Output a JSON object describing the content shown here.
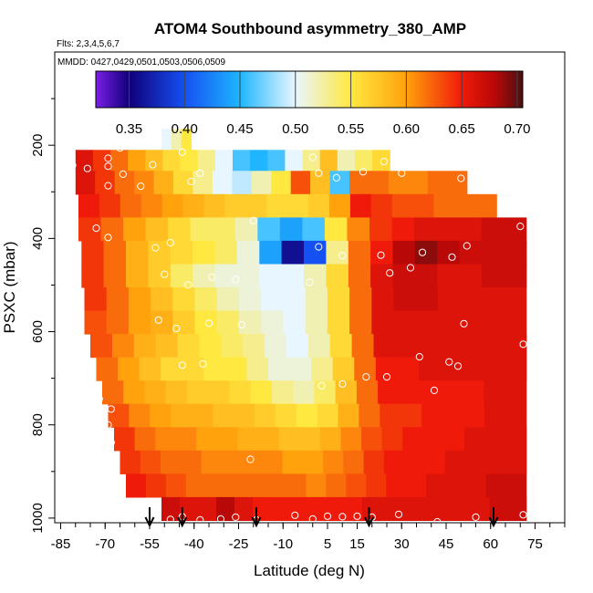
{
  "chart_data": {
    "type": "heatmap",
    "title": "ATOM4 Southbound asymmetry_380_AMP",
    "subtitle": "Flts: 2,3,4,5,6,7",
    "note": "MMDD: 0427,0429,0501,0503,0506,0509",
    "xlabel": "Latitude (deg N)",
    "ylabel": "PSXC (mbar)",
    "xlim": [
      -87,
      85
    ],
    "ylim": [
      1010,
      0
    ],
    "x_tick_labels": [
      "-85",
      "-70",
      "-55",
      "-40",
      "-25",
      "-10",
      "5",
      "15",
      "30",
      "45",
      "60",
      "75"
    ],
    "x_tick_values": [
      -85,
      -70,
      -55,
      -40,
      -25,
      -10,
      5,
      15,
      30,
      45,
      60,
      75
    ],
    "y_tick_labels": [
      "200",
      "400",
      "600",
      "800",
      "1000"
    ],
    "y_tick_values": [
      200,
      400,
      600,
      800,
      1000
    ],
    "colorbar": {
      "min": 0.32,
      "max": 0.705,
      "tick_labels": [
        "0.35",
        "0.40",
        "0.45",
        "0.50",
        "0.55",
        "0.60",
        "0.65",
        "0.70"
      ],
      "tick_values": [
        0.35,
        0.4,
        0.45,
        0.5,
        0.55,
        0.6,
        0.65,
        0.7
      ],
      "stops": [
        {
          "v": 0.32,
          "color": "#7a1fe6"
        },
        {
          "v": 0.35,
          "color": "#10007a"
        },
        {
          "v": 0.4,
          "color": "#1550f2"
        },
        {
          "v": 0.45,
          "color": "#1fb6ff"
        },
        {
          "v": 0.5,
          "color": "#e8f6ff"
        },
        {
          "v": 0.55,
          "color": "#ffe840"
        },
        {
          "v": 0.6,
          "color": "#ffa20c"
        },
        {
          "v": 0.65,
          "color": "#f01a0a"
        },
        {
          "v": 0.68,
          "color": "#b80808"
        },
        {
          "v": 0.705,
          "color": "#4a1010"
        }
      ]
    },
    "pressure_bands": [
      {
        "p_top": 165,
        "p_bot": 210,
        "lat_start": -51,
        "lat_end": -41,
        "values": [
          0.5,
          0.52,
          0.55
        ]
      },
      {
        "p_top": 210,
        "p_bot": 255,
        "lat_start": -80,
        "lat_end": 26,
        "values": [
          0.66,
          0.64,
          0.62,
          0.6,
          0.58,
          0.56,
          0.55,
          0.53,
          0.5,
          0.46,
          0.45,
          0.46,
          0.5,
          0.53,
          0.58,
          0.52,
          0.54,
          0.56
        ]
      },
      {
        "p_top": 255,
        "p_bot": 305,
        "lat_start": -80,
        "lat_end": 52,
        "values": [
          0.66,
          0.64,
          0.62,
          0.61,
          0.59,
          0.56,
          0.53,
          0.5,
          0.49,
          0.52,
          0.55,
          0.63,
          0.58,
          0.46,
          0.62,
          0.62,
          0.61,
          0.61,
          0.62,
          0.62
        ]
      },
      {
        "p_top": 305,
        "p_bot": 355,
        "lat_start": -79,
        "lat_end": 62,
        "values": [
          0.65,
          0.64,
          0.62,
          0.61,
          0.6,
          0.59,
          0.58,
          0.57,
          0.57,
          0.56,
          0.56,
          0.57,
          0.6,
          0.65,
          0.64,
          0.63,
          0.63,
          0.62,
          0.62,
          0.62
        ]
      },
      {
        "p_top": 355,
        "p_bot": 405,
        "lat_start": -79,
        "lat_end": 72,
        "values": [
          0.64,
          0.62,
          0.6,
          0.58,
          0.56,
          0.54,
          0.54,
          0.52,
          0.46,
          0.44,
          0.46,
          0.55,
          0.61,
          0.64,
          0.65,
          0.66,
          0.66,
          0.66,
          0.67,
          0.67
        ]
      },
      {
        "p_top": 405,
        "p_bot": 455,
        "lat_start": -78,
        "lat_end": 72,
        "values": [
          0.64,
          0.62,
          0.59,
          0.57,
          0.56,
          0.55,
          0.54,
          0.51,
          0.44,
          0.36,
          0.4,
          0.53,
          0.62,
          0.65,
          0.68,
          0.69,
          0.68,
          0.67,
          0.67,
          0.67
        ]
      },
      {
        "p_top": 455,
        "p_bot": 505,
        "lat_start": -78,
        "lat_end": 72,
        "values": [
          0.64,
          0.62,
          0.59,
          0.57,
          0.54,
          0.52,
          0.51,
          0.51,
          0.5,
          0.5,
          0.52,
          0.56,
          0.62,
          0.66,
          0.67,
          0.67,
          0.66,
          0.66,
          0.67,
          0.67
        ]
      },
      {
        "p_top": 505,
        "p_bot": 555,
        "lat_start": -77,
        "lat_end": 72,
        "values": [
          0.64,
          0.62,
          0.6,
          0.58,
          0.56,
          0.54,
          0.52,
          0.51,
          0.5,
          0.5,
          0.52,
          0.56,
          0.62,
          0.66,
          0.67,
          0.67,
          0.66,
          0.66,
          0.66,
          0.66
        ]
      },
      {
        "p_top": 555,
        "p_bot": 605,
        "lat_start": -77,
        "lat_end": 72,
        "values": [
          0.63,
          0.62,
          0.6,
          0.59,
          0.57,
          0.55,
          0.54,
          0.52,
          0.51,
          0.5,
          0.52,
          0.56,
          0.62,
          0.66,
          0.66,
          0.66,
          0.66,
          0.66,
          0.66,
          0.66
        ]
      },
      {
        "p_top": 605,
        "p_bot": 655,
        "lat_start": -75,
        "lat_end": 72,
        "values": [
          0.63,
          0.61,
          0.59,
          0.58,
          0.56,
          0.55,
          0.54,
          0.53,
          0.51,
          0.5,
          0.52,
          0.56,
          0.62,
          0.66,
          0.66,
          0.66,
          0.66,
          0.66,
          0.66,
          0.66
        ]
      },
      {
        "p_top": 655,
        "p_bot": 705,
        "lat_start": -73,
        "lat_end": 72,
        "values": [
          0.62,
          0.6,
          0.58,
          0.56,
          0.56,
          0.55,
          0.55,
          0.53,
          0.51,
          0.51,
          0.53,
          0.57,
          0.62,
          0.65,
          0.65,
          0.66,
          0.66,
          0.66,
          0.66,
          0.66
        ]
      },
      {
        "p_top": 705,
        "p_bot": 755,
        "lat_start": -71,
        "lat_end": 72,
        "values": [
          0.62,
          0.6,
          0.59,
          0.58,
          0.57,
          0.57,
          0.56,
          0.55,
          0.53,
          0.52,
          0.54,
          0.58,
          0.62,
          0.65,
          0.65,
          0.65,
          0.65,
          0.65,
          0.66,
          0.66
        ]
      },
      {
        "p_top": 755,
        "p_bot": 805,
        "lat_start": -69,
        "lat_end": 72,
        "values": [
          0.63,
          0.61,
          0.6,
          0.59,
          0.59,
          0.58,
          0.58,
          0.57,
          0.56,
          0.55,
          0.56,
          0.59,
          0.62,
          0.64,
          0.64,
          0.65,
          0.65,
          0.65,
          0.66,
          0.66
        ]
      },
      {
        "p_top": 805,
        "p_bot": 855,
        "lat_start": -67,
        "lat_end": 72,
        "values": [
          0.64,
          0.62,
          0.61,
          0.61,
          0.6,
          0.6,
          0.59,
          0.59,
          0.58,
          0.58,
          0.59,
          0.61,
          0.63,
          0.64,
          0.65,
          0.65,
          0.65,
          0.66,
          0.66,
          0.66
        ]
      },
      {
        "p_top": 855,
        "p_bot": 905,
        "lat_start": -65,
        "lat_end": 72,
        "values": [
          0.64,
          0.63,
          0.62,
          0.62,
          0.61,
          0.61,
          0.61,
          0.61,
          0.6,
          0.6,
          0.61,
          0.62,
          0.64,
          0.65,
          0.65,
          0.65,
          0.66,
          0.66,
          0.66,
          0.66
        ]
      },
      {
        "p_top": 905,
        "p_bot": 955,
        "lat_start": -63,
        "lat_end": 72,
        "values": [
          0.65,
          0.64,
          0.63,
          0.62,
          0.62,
          0.62,
          0.62,
          0.62,
          0.62,
          0.61,
          0.62,
          0.63,
          0.64,
          0.65,
          0.65,
          0.66,
          0.66,
          0.66,
          0.67,
          0.67
        ]
      },
      {
        "p_top": 955,
        "p_bot": 1005,
        "lat_start": -51,
        "lat_end": 72,
        "values": [
          0.67,
          0.66,
          0.66,
          0.68,
          0.66,
          0.65,
          0.65,
          0.65,
          0.65,
          0.65,
          0.65,
          0.66,
          0.66,
          0.66,
          0.66,
          0.66,
          0.66,
          0.66,
          0.67,
          0.67
        ]
      }
    ],
    "arrows_latitude": [
      -55,
      -44,
      -19,
      19,
      61
    ],
    "observation_points": [
      {
        "lat": -81,
        "p": 243
      },
      {
        "lat": -76,
        "p": 250
      },
      {
        "lat": -69,
        "p": 228
      },
      {
        "lat": -69,
        "p": 245
      },
      {
        "lat": -64,
        "p": 262
      },
      {
        "lat": -69,
        "p": 287
      },
      {
        "lat": -58,
        "p": 288
      },
      {
        "lat": -65,
        "p": 206
      },
      {
        "lat": -44,
        "p": 215
      },
      {
        "lat": -54,
        "p": 242
      },
      {
        "lat": -38,
        "p": 260
      },
      {
        "lat": -41,
        "p": 278
      },
      {
        "lat": 0,
        "p": 226
      },
      {
        "lat": 2,
        "p": 260
      },
      {
        "lat": 17,
        "p": 257
      },
      {
        "lat": 8,
        "p": 270
      },
      {
        "lat": 24,
        "p": 235
      },
      {
        "lat": 30,
        "p": 260
      },
      {
        "lat": 50,
        "p": 271
      },
      {
        "lat": -20,
        "p": 362
      },
      {
        "lat": -73,
        "p": 378
      },
      {
        "lat": -69,
        "p": 398
      },
      {
        "lat": -53,
        "p": 420
      },
      {
        "lat": -48,
        "p": 409
      },
      {
        "lat": 2,
        "p": 418
      },
      {
        "lat": 10,
        "p": 437
      },
      {
        "lat": 23,
        "p": 436
      },
      {
        "lat": 52,
        "p": 416
      },
      {
        "lat": 47,
        "p": 440
      },
      {
        "lat": 37,
        "p": 430
      },
      {
        "lat": 33,
        "p": 463
      },
      {
        "lat": 70,
        "p": 374
      },
      {
        "lat": -50,
        "p": 477
      },
      {
        "lat": -34,
        "p": 483
      },
      {
        "lat": -42,
        "p": 500
      },
      {
        "lat": -26,
        "p": 488
      },
      {
        "lat": -1,
        "p": 494
      },
      {
        "lat": 26,
        "p": 474
      },
      {
        "lat": -80,
        "p": 542
      },
      {
        "lat": -52,
        "p": 575
      },
      {
        "lat": -35,
        "p": 582
      },
      {
        "lat": -46,
        "p": 593
      },
      {
        "lat": -24,
        "p": 585
      },
      {
        "lat": 51,
        "p": 583
      },
      {
        "lat": 71,
        "p": 627
      },
      {
        "lat": 36,
        "p": 654
      },
      {
        "lat": 25,
        "p": 697
      },
      {
        "lat": 18,
        "p": 697
      },
      {
        "lat": -44,
        "p": 672
      },
      {
        "lat": -37,
        "p": 669
      },
      {
        "lat": 49,
        "p": 674
      },
      {
        "lat": 46,
        "p": 665
      },
      {
        "lat": 41,
        "p": 726
      },
      {
        "lat": 3,
        "p": 716
      },
      {
        "lat": 10,
        "p": 712
      },
      {
        "lat": -72,
        "p": 744
      },
      {
        "lat": -68,
        "p": 766
      },
      {
        "lat": -69,
        "p": 800
      },
      {
        "lat": -68,
        "p": 838
      },
      {
        "lat": -21,
        "p": 874
      },
      {
        "lat": -62,
        "p": 975
      },
      {
        "lat": -48,
        "p": 1003
      },
      {
        "lat": -44,
        "p": 997
      },
      {
        "lat": -38,
        "p": 1004
      },
      {
        "lat": -31,
        "p": 1002
      },
      {
        "lat": -26,
        "p": 998
      },
      {
        "lat": -19,
        "p": 1004
      },
      {
        "lat": -6,
        "p": 994
      },
      {
        "lat": 0,
        "p": 1002
      },
      {
        "lat": 5,
        "p": 996
      },
      {
        "lat": 10,
        "p": 997
      },
      {
        "lat": 15,
        "p": 996
      },
      {
        "lat": 20,
        "p": 998
      },
      {
        "lat": 29,
        "p": 992
      },
      {
        "lat": 42,
        "p": 1008
      },
      {
        "lat": 55,
        "p": 998
      },
      {
        "lat": 71,
        "p": 993
      }
    ]
  }
}
